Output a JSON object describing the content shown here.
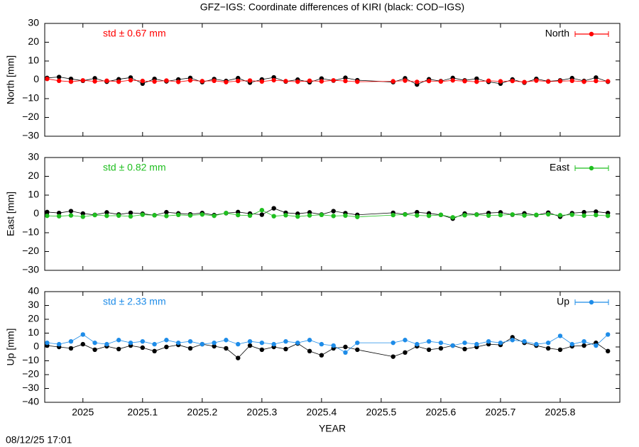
{
  "title": "GFZ−IGS: Coordinate differences of KIRI (black: COD−IGS)",
  "timestamp": "08/12/25 17:01",
  "chart_data": [
    {
      "type": "line",
      "ylabel": "North [mm]",
      "annotation": "std ± 0.67 mm",
      "legend": "top-right",
      "xlim": [
        2024.936,
        2025.9
      ],
      "ylim": [
        -30,
        30
      ],
      "yticks": [
        {
          "value": -30,
          "label": "−30"
        },
        {
          "value": -20,
          "label": "−20"
        },
        {
          "value": -10,
          "label": "−10"
        },
        0,
        10,
        20,
        30
      ],
      "x": [
        2024.94,
        2024.96,
        2024.98,
        2025,
        2025.02,
        2025.04,
        2025.06,
        2025.08,
        2025.1,
        2025.12,
        2025.14,
        2025.16,
        2025.18,
        2025.2,
        2025.22,
        2025.24,
        2025.26,
        2025.28,
        2025.3,
        2025.32,
        2025.34,
        2025.36,
        2025.38,
        2025.4,
        2025.42,
        2025.44,
        2025.46,
        2025.52,
        2025.54,
        2025.56,
        2025.58,
        2025.6,
        2025.62,
        2025.64,
        2025.66,
        2025.68,
        2025.7,
        2025.72,
        2025.74,
        2025.76,
        2025.78,
        2025.8,
        2025.82,
        2025.84,
        2025.86,
        2025.88
      ],
      "series": [
        {
          "color": "#000000",
          "values": [
            1,
            1.5,
            0.5,
            -0.5,
            0.8,
            -1,
            0.3,
            1.2,
            -2,
            0.5,
            -0.8,
            0.2,
            1,
            -1.2,
            0.4,
            -0.6,
            0.9,
            -1.5,
            0.2,
            1.3,
            -0.9,
            0.1,
            -1.3,
            0.7,
            -0.4,
            1.1,
            -0.2,
            -1.2,
            0.8,
            -2.5,
            0.3,
            -0.7,
            1,
            -0.3,
            0.6,
            -1.1,
            -2,
            0.2,
            -1.5,
            0.5,
            -0.8,
            -0.3,
            0.9,
            -0.6,
            1.2,
            -1
          ]
        },
        {
          "name": "North",
          "color": "#ff0000",
          "values": [
            0.5,
            -0.5,
            -1,
            -0.3,
            -0.8,
            -0.5,
            -1,
            -0.2,
            -0.6,
            -0.9,
            -0.4,
            -1.1,
            -0.3,
            -0.7,
            -0.5,
            -1.2,
            -0.6,
            -0.4,
            -0.9,
            -0.2,
            -0.7,
            -1,
            -0.5,
            -0.8,
            -0.3,
            -0.6,
            -1,
            -0.8,
            -0.4,
            -1.1,
            -0.6,
            -0.9,
            -0.3,
            -0.7,
            -1,
            -0.5,
            -0.8,
            -0.6,
            -1.2,
            -0.4,
            -0.9,
            -0.7,
            -0.5,
            -1,
            -0.6,
            -0.8
          ]
        }
      ]
    },
    {
      "type": "line",
      "ylabel": "East [mm]",
      "annotation": "std ± 0.82 mm",
      "legend": "top-right",
      "xlim": [
        2024.936,
        2025.9
      ],
      "ylim": [
        -30,
        30
      ],
      "yticks": [
        {
          "value": -30,
          "label": "−30"
        },
        {
          "value": -20,
          "label": "−20"
        },
        {
          "value": -10,
          "label": "−10"
        },
        0,
        10,
        20,
        30
      ],
      "x": [
        2024.94,
        2024.96,
        2024.98,
        2025,
        2025.02,
        2025.04,
        2025.06,
        2025.08,
        2025.1,
        2025.12,
        2025.14,
        2025.16,
        2025.18,
        2025.2,
        2025.22,
        2025.24,
        2025.26,
        2025.28,
        2025.3,
        2025.32,
        2025.34,
        2025.36,
        2025.38,
        2025.4,
        2025.42,
        2025.44,
        2025.46,
        2025.52,
        2025.54,
        2025.56,
        2025.58,
        2025.6,
        2025.62,
        2025.64,
        2025.66,
        2025.68,
        2025.7,
        2025.72,
        2025.74,
        2025.76,
        2025.78,
        2025.8,
        2025.82,
        2025.84,
        2025.86,
        2025.88
      ],
      "series": [
        {
          "color": "#000000",
          "values": [
            1,
            0.5,
            1.5,
            0.2,
            -0.5,
            0.8,
            -0.3,
            0.6,
            0.1,
            -0.7,
            0.9,
            0.3,
            -0.2,
            0.5,
            -0.6,
            0.4,
            1,
            0.2,
            -0.4,
            3,
            0.6,
            0.1,
            0.8,
            -0.3,
            1.5,
            0.4,
            -0.5,
            0.6,
            -0.2,
            0.9,
            0.3,
            -0.5,
            -2.5,
            0.2,
            -0.3,
            0.5,
            0.8,
            -0.4,
            0.3,
            -0.6,
            0.7,
            -1.5,
            0.4,
            0.9,
            1.2,
            0.5
          ]
        },
        {
          "name": "East",
          "color": "#1fbf1f",
          "values": [
            -1,
            -1.2,
            -0.8,
            -1.5,
            -0.6,
            -1,
            -0.9,
            -1.3,
            -0.4,
            -0.7,
            -1.1,
            -0.5,
            -0.8,
            -0.3,
            -1,
            0.5,
            -0.6,
            -0.9,
            2,
            -1.2,
            -0.7,
            -1.4,
            -0.8,
            -0.5,
            -1.1,
            -0.9,
            -1.6,
            -0.6,
            -0.3,
            -0.8,
            -1,
            -0.5,
            -1.8,
            -0.7,
            -0.4,
            -0.9,
            -0.6,
            -0.3,
            -0.8,
            -0.5,
            -0.2,
            -0.7,
            -0.4,
            -0.9,
            -0.6,
            -1
          ]
        }
      ]
    },
    {
      "type": "line",
      "ylabel": "Up [mm]",
      "xlabel": "YEAR",
      "annotation": "std ± 2.33 mm",
      "legend": "top-right",
      "xlim": [
        2024.936,
        2025.9
      ],
      "ylim": [
        -40,
        40
      ],
      "yticks": [
        {
          "value": -40,
          "label": "−40"
        },
        {
          "value": -30,
          "label": "−30"
        },
        {
          "value": -20,
          "label": "−20"
        },
        {
          "value": -10,
          "label": "−10"
        },
        0,
        10,
        20,
        30,
        40
      ],
      "xticks": [
        2025,
        2025.1,
        2025.2,
        2025.3,
        2025.4,
        2025.5,
        2025.6,
        2025.7,
        2025.8
      ],
      "x": [
        2024.94,
        2024.96,
        2024.98,
        2025,
        2025.02,
        2025.04,
        2025.06,
        2025.08,
        2025.1,
        2025.12,
        2025.14,
        2025.16,
        2025.18,
        2025.2,
        2025.22,
        2025.24,
        2025.26,
        2025.28,
        2025.3,
        2025.32,
        2025.34,
        2025.36,
        2025.38,
        2025.4,
        2025.42,
        2025.44,
        2025.46,
        2025.52,
        2025.54,
        2025.56,
        2025.58,
        2025.6,
        2025.62,
        2025.64,
        2025.66,
        2025.68,
        2025.7,
        2025.72,
        2025.74,
        2025.76,
        2025.78,
        2025.8,
        2025.82,
        2025.84,
        2025.86,
        2025.88
      ],
      "series": [
        {
          "color": "#000000",
          "values": [
            1,
            0,
            -1,
            2,
            -2,
            0.5,
            -1.5,
            1,
            -0.5,
            -3,
            0,
            1.5,
            -1,
            2,
            0.5,
            -1,
            -8,
            1,
            -2,
            0,
            -1.5,
            2.5,
            -3,
            -6,
            -1,
            0,
            -2,
            -7,
            -4,
            0.5,
            -2,
            -1,
            1,
            -1.5,
            0,
            2,
            1.5,
            7,
            3,
            1,
            -1,
            -2,
            0.5,
            1,
            3,
            -3
          ]
        },
        {
          "name": "Up",
          "color": "#1e8ce8",
          "values": [
            3,
            2,
            4,
            9,
            3,
            2,
            5,
            3,
            4,
            2,
            5,
            3,
            4,
            2,
            3,
            5,
            2,
            4,
            3,
            2,
            4,
            3,
            5,
            2,
            1,
            -4,
            3,
            3,
            5,
            2,
            4,
            3,
            1,
            3,
            2,
            4,
            3,
            5,
            4,
            2,
            3,
            8,
            2,
            4,
            1,
            9
          ]
        }
      ]
    }
  ]
}
